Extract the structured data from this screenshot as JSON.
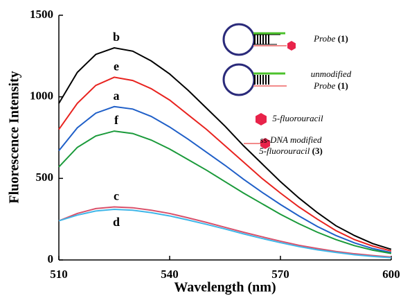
{
  "chart_data": {
    "type": "line",
    "xlabel": "Wavelength (nm)",
    "ylabel": "Fluorescence Intensity",
    "x": [
      510,
      515,
      520,
      525,
      530,
      535,
      540,
      545,
      550,
      555,
      560,
      565,
      570,
      575,
      580,
      585,
      590,
      595,
      600
    ],
    "xlim": [
      510,
      600
    ],
    "xticks": [
      510,
      540,
      570,
      600
    ],
    "ylim": [
      0,
      1500
    ],
    "yticks": [
      0,
      500,
      1000,
      1500
    ],
    "series": [
      {
        "name": "b",
        "color": "#000000",
        "values": [
          960,
          1150,
          1260,
          1300,
          1280,
          1220,
          1140,
          1040,
          930,
          820,
          700,
          590,
          480,
          380,
          290,
          210,
          150,
          100,
          65
        ]
      },
      {
        "name": "e",
        "color": "#e8231f",
        "values": [
          800,
          960,
          1070,
          1120,
          1100,
          1050,
          980,
          890,
          800,
          700,
          600,
          500,
          410,
          325,
          250,
          180,
          125,
          85,
          55
        ]
      },
      {
        "name": "a",
        "color": "#1f5fc8",
        "values": [
          670,
          810,
          900,
          940,
          925,
          880,
          815,
          740,
          660,
          580,
          495,
          415,
          340,
          270,
          205,
          150,
          105,
          70,
          45
        ]
      },
      {
        "name": "f",
        "color": "#1a9a3a",
        "values": [
          570,
          690,
          760,
          790,
          775,
          735,
          680,
          615,
          550,
          480,
          410,
          345,
          280,
          222,
          170,
          125,
          88,
          60,
          40
        ]
      },
      {
        "name": "c",
        "color": "#d9506a",
        "values": [
          240,
          285,
          315,
          325,
          320,
          305,
          285,
          258,
          230,
          200,
          170,
          142,
          115,
          90,
          70,
          52,
          38,
          27,
          18
        ]
      },
      {
        "name": "d",
        "color": "#3fb6e8",
        "values": [
          240,
          275,
          300,
          310,
          305,
          290,
          270,
          245,
          218,
          190,
          160,
          132,
          106,
          82,
          62,
          46,
          32,
          22,
          14
        ]
      }
    ],
    "legend": [
      {
        "lines": [
          "Probe"
        ],
        "number": "(1)"
      },
      {
        "lines": [
          "unmodified",
          "Probe"
        ],
        "number": "(1)"
      },
      {
        "lines": [
          "5-fluorouracil"
        ]
      },
      {
        "lines": [
          "ss-DNA modified",
          "5-fluorouracil"
        ],
        "number": "(3)"
      }
    ]
  }
}
